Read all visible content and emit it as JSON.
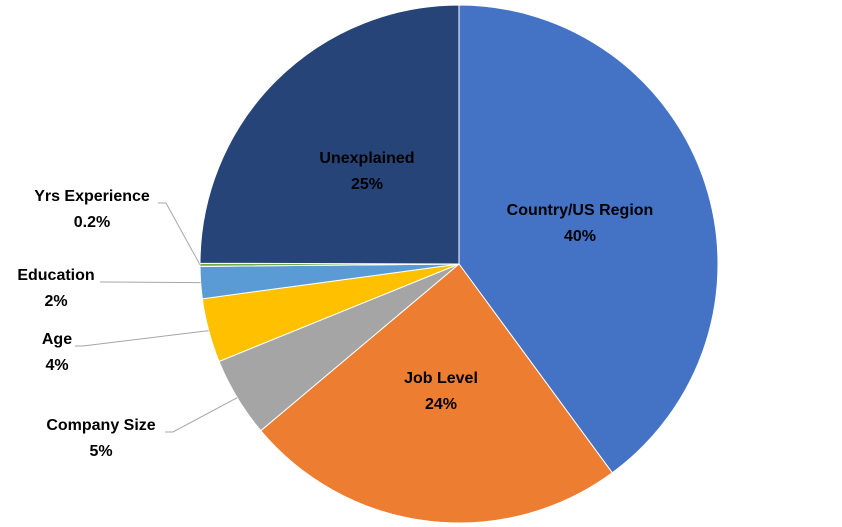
{
  "chart_data": {
    "type": "pie",
    "categories": [
      "Country/US Region",
      "Job Level",
      "Company Size",
      "Age",
      "Education",
      "Yrs Experience",
      "Unexplained"
    ],
    "values": [
      40,
      24,
      5,
      4,
      2,
      0.2,
      25
    ],
    "value_labels": [
      "40%",
      "24%",
      "5%",
      "4%",
      "2%",
      "0.2%",
      "25%"
    ],
    "colors": [
      "#4472c4",
      "#ed7d31",
      "#a5a5a5",
      "#ffc000",
      "#5b9bd5",
      "#70ad47",
      "#264478"
    ]
  }
}
